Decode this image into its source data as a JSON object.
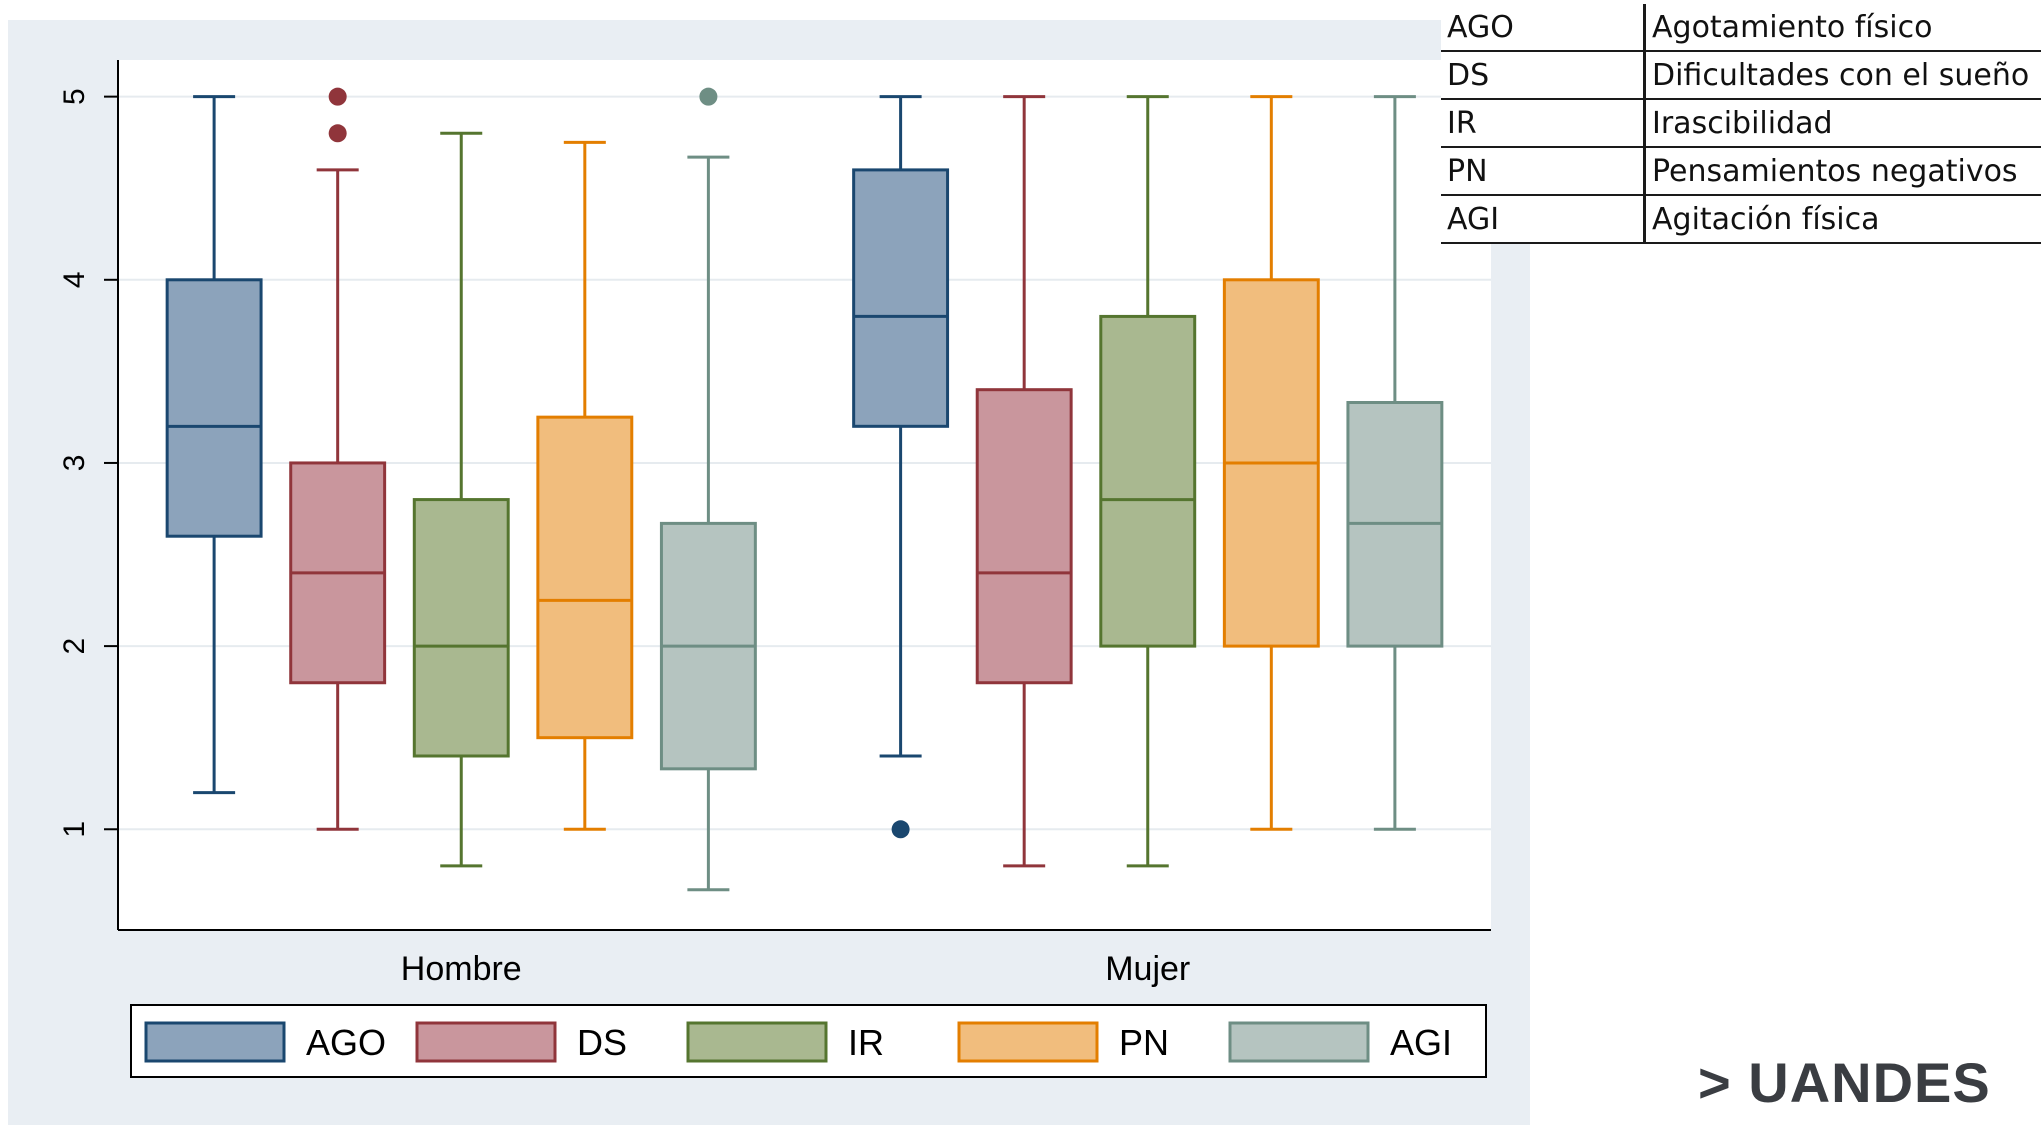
{
  "abbreviations": [
    {
      "code": "AGO",
      "meaning": "Agotamiento físico"
    },
    {
      "code": "DS",
      "meaning": "Dificultades con el sueño"
    },
    {
      "code": "IR",
      "meaning": "Irascibilidad"
    },
    {
      "code": "PN",
      "meaning": "Pensamientos negativos"
    },
    {
      "code": "AGI",
      "meaning": "Agitación física"
    }
  ],
  "brand": {
    "logo_text": "> UANDES"
  },
  "chart_data": {
    "type": "box",
    "title": "",
    "xlabel": "",
    "ylabel": "",
    "ylim": [
      0.45,
      5.2
    ],
    "yticks": [
      1,
      2,
      3,
      4,
      5
    ],
    "grid": true,
    "legend_position": "bottom",
    "groups": [
      "Hombre",
      "Mujer"
    ],
    "series": [
      {
        "name": "AGO",
        "fill": "#8ca3bb",
        "stroke": "#1a476f",
        "boxes": [
          {
            "whisker_low": 1.2,
            "q1": 2.6,
            "median": 3.2,
            "q3": 4.0,
            "whisker_high": 5.0,
            "outliers": []
          },
          {
            "whisker_low": 1.4,
            "q1": 3.2,
            "median": 3.8,
            "q3": 4.6,
            "whisker_high": 5.0,
            "outliers": [
              1.0
            ]
          }
        ]
      },
      {
        "name": "DS",
        "fill": "#c9969d",
        "stroke": "#90353b",
        "boxes": [
          {
            "whisker_low": 1.0,
            "q1": 1.8,
            "median": 2.4,
            "q3": 3.0,
            "whisker_high": 4.6,
            "outliers": [
              4.8,
              5.0
            ]
          },
          {
            "whisker_low": 0.8,
            "q1": 1.8,
            "median": 2.4,
            "q3": 3.4,
            "whisker_high": 5.0,
            "outliers": []
          }
        ]
      },
      {
        "name": "IR",
        "fill": "#a9b890",
        "stroke": "#55752f",
        "boxes": [
          {
            "whisker_low": 0.8,
            "q1": 1.4,
            "median": 2.0,
            "q3": 2.8,
            "whisker_high": 4.8,
            "outliers": []
          },
          {
            "whisker_low": 0.8,
            "q1": 2.0,
            "median": 2.8,
            "q3": 3.8,
            "whisker_high": 5.0,
            "outliers": []
          }
        ]
      },
      {
        "name": "PN",
        "fill": "#f1bd7d",
        "stroke": "#e37e00",
        "boxes": [
          {
            "whisker_low": 1.0,
            "q1": 1.5,
            "median": 2.25,
            "q3": 3.25,
            "whisker_high": 4.75,
            "outliers": []
          },
          {
            "whisker_low": 1.0,
            "q1": 2.0,
            "median": 3.0,
            "q3": 4.0,
            "whisker_high": 5.0,
            "outliers": []
          }
        ]
      },
      {
        "name": "AGI",
        "fill": "#b5c4c0",
        "stroke": "#6e8e84",
        "boxes": [
          {
            "whisker_low": 0.67,
            "q1": 1.33,
            "median": 2.0,
            "q3": 2.67,
            "whisker_high": 4.67,
            "outliers": [
              5.0
            ]
          },
          {
            "whisker_low": 1.0,
            "q1": 2.0,
            "median": 2.67,
            "q3": 3.33,
            "whisker_high": 5.0,
            "outliers": []
          }
        ]
      }
    ]
  }
}
